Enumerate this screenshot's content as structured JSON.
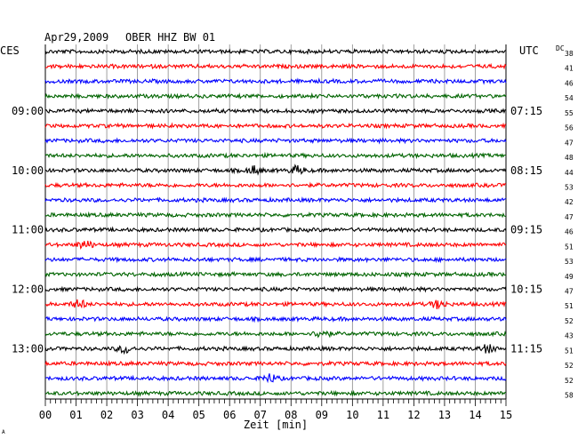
{
  "header": {
    "date": "Apr29,2009",
    "station": "OBER HHZ BW 01",
    "left_zone": "CES",
    "right_zone": "UTC",
    "dc_label": "DC"
  },
  "colors": {
    "trace_cycle": [
      "#000000",
      "#ff0000",
      "#0000ff",
      "#006400"
    ],
    "grid": "#888888",
    "axis": "#000000"
  },
  "chart_data": {
    "type": "line",
    "title": "Apr29,2009 OBER HHZ BW 01",
    "xlabel": "Zeit [min]",
    "xlim": [
      0,
      15
    ],
    "x_tick_labels": [
      "00",
      "01",
      "02",
      "03",
      "04",
      "05",
      "06",
      "07",
      "08",
      "09",
      "10",
      "11",
      "12",
      "13",
      "14",
      "15"
    ],
    "row_count": 24,
    "left_hour_labels": [
      {
        "row": 4,
        "label": "09:00"
      },
      {
        "row": 8,
        "label": "10:00"
      },
      {
        "row": 12,
        "label": "11:00"
      },
      {
        "row": 16,
        "label": "12:00"
      },
      {
        "row": 20,
        "label": "13:00"
      }
    ],
    "right_hour_labels": [
      {
        "row": 4,
        "label": "07:15"
      },
      {
        "row": 8,
        "label": "08:15"
      },
      {
        "row": 12,
        "label": "09:15"
      },
      {
        "row": 16,
        "label": "10:15"
      },
      {
        "row": 20,
        "label": "11:15"
      }
    ],
    "dc_offsets": [
      38,
      41,
      46,
      54,
      55,
      56,
      47,
      48,
      44,
      53,
      42,
      47,
      46,
      51,
      53,
      49,
      47,
      51,
      52,
      43,
      51,
      52,
      52,
      58
    ],
    "grid": true
  }
}
